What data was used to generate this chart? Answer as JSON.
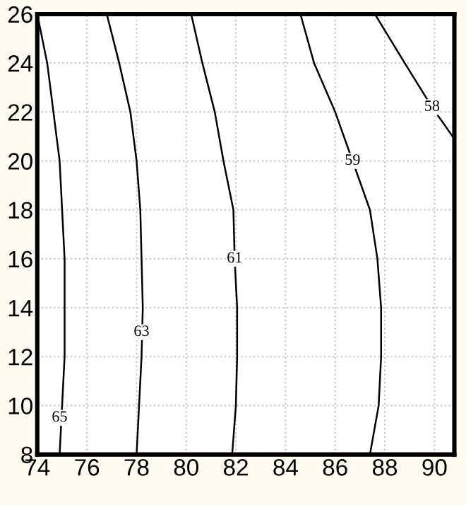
{
  "chart_data": {
    "type": "line",
    "series": [
      {
        "color": "#000000",
        "x": [
          74.9,
          75.0,
          75.1,
          75.1,
          75.1,
          74.9,
          74.4,
          74.0
        ],
        "values": [
          8,
          10,
          12,
          14,
          16,
          20,
          24,
          26
        ]
      },
      {
        "color": "#000000",
        "x": [
          78.0,
          78.1,
          78.2,
          78.25,
          78.2,
          78.15,
          78.0,
          77.75,
          77.3,
          76.8
        ],
        "values": [
          8,
          10,
          12,
          14,
          16,
          18,
          20,
          22,
          24,
          26
        ]
      },
      {
        "color": "#000000",
        "x": [
          81.85,
          82.0,
          82.05,
          82.05,
          81.95,
          81.9,
          81.5,
          81.15,
          80.65,
          80.2
        ],
        "values": [
          8,
          10,
          12,
          14,
          16,
          18,
          20,
          22,
          24,
          26
        ]
      },
      {
        "color": "#000000",
        "x": [
          87.4,
          87.75,
          87.85,
          87.85,
          87.7,
          87.4,
          86.7,
          86.0,
          85.15,
          84.6
        ],
        "values": [
          8,
          10,
          12,
          14,
          16,
          18,
          20,
          22,
          24,
          26
        ]
      },
      {
        "color": "#000000",
        "x": [
          90.8,
          89.9,
          88.8,
          87.6
        ],
        "values": [
          20.9,
          22.2,
          24,
          26
        ]
      }
    ],
    "annotations": [
      {
        "text": "65",
        "x": 74.9,
        "y": 9.5
      },
      {
        "text": "63",
        "x": 78.2,
        "y": 13
      },
      {
        "text": "61",
        "x": 81.95,
        "y": 16
      },
      {
        "text": "59",
        "x": 86.7,
        "y": 20
      },
      {
        "text": "58",
        "x": 89.9,
        "y": 22.2
      }
    ],
    "xlim": [
      74,
      90.8
    ],
    "xticks": [
      74,
      76,
      78,
      80,
      82,
      84,
      86,
      88,
      90
    ],
    "ylim": [
      8,
      26
    ],
    "yticks": [
      8,
      10,
      12,
      14,
      16,
      18,
      20,
      22,
      24,
      26
    ],
    "grid": true,
    "line_style": "solid",
    "marker": "none"
  }
}
